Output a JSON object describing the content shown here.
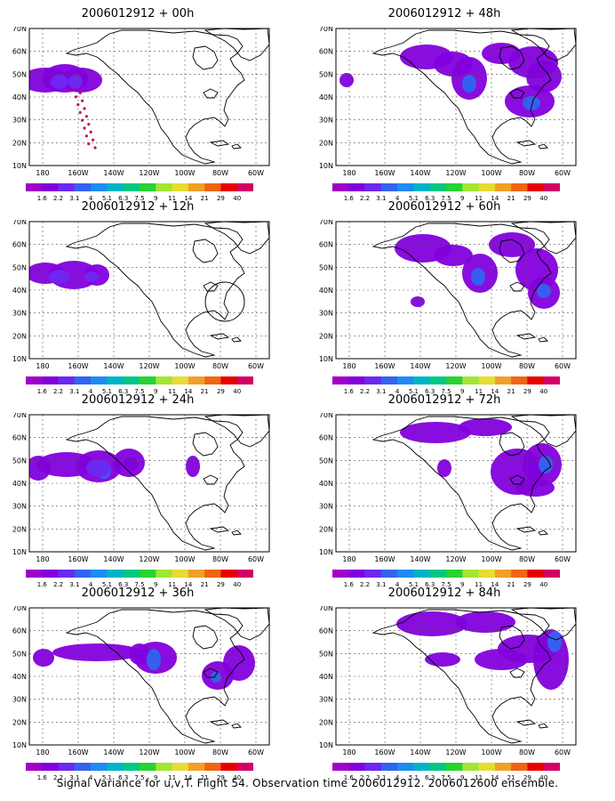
{
  "levels": [
    "1.6",
    "2.2",
    "3.1",
    "4",
    "5.1",
    "6.3",
    "7.5",
    "9",
    "11",
    "14",
    "21",
    "29",
    "40"
  ],
  "level_colors": [
    "#a000c8",
    "#8200dc",
    "#6e28f0",
    "#3264f0",
    "#1e8cf0",
    "#00b4c8",
    "#00c882",
    "#28d232",
    "#a0e632",
    "#e6dc32",
    "#f0a028",
    "#f06414",
    "#e60000",
    "#d20064"
  ],
  "lon_labels": [
    "180",
    "160W",
    "140W",
    "120W",
    "100W",
    "80W",
    "60W"
  ],
  "lat_labels": [
    "70N",
    "60N",
    "50N",
    "40N",
    "30N",
    "20N",
    "10N"
  ],
  "panels": [
    {
      "title": "2006012912 + 00h"
    },
    {
      "title": "2006012912 + 48h"
    },
    {
      "title": "2006012912 + 12h"
    },
    {
      "title": "2006012912 + 60h"
    },
    {
      "title": "2006012912 + 24h"
    },
    {
      "title": "2006012912 + 72h"
    },
    {
      "title": "2006012912 + 36h"
    },
    {
      "title": "2006012912 + 84h"
    }
  ],
  "caption": "Signal Variance for u,v,T. Flight 54. Observation time 2006012912. 2006012600 ensemble."
}
